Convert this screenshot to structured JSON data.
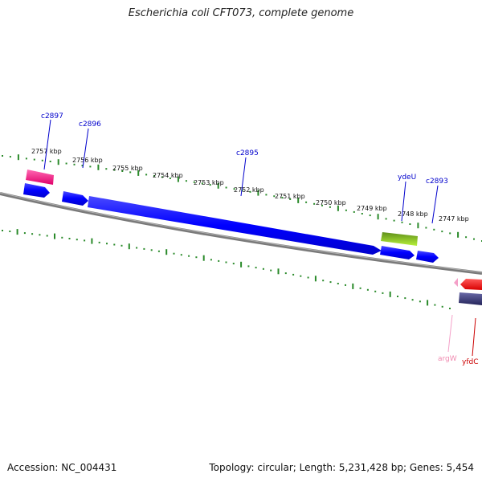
{
  "title": "Escherichia coli CFT073, complete genome",
  "footer": {
    "accession": "Accession: NC_004431",
    "topology": "Topology: circular; Length: 5,231,428 bp; Genes: 5,454"
  },
  "map": {
    "kbp_ticks": [
      "2757 kbp",
      "2756 kbp",
      "2755 kbp",
      "2754 kbp",
      "2753 kbp",
      "2752 kbp",
      "2751 kbp",
      "2750 kbp",
      "2749 kbp",
      "2748 kbp",
      "2747 kbp"
    ],
    "gene_labels": [
      {
        "name": "c2897",
        "color": "#0000cc"
      },
      {
        "name": "c2896",
        "color": "#0000cc"
      },
      {
        "name": "c2895",
        "color": "#0000cc"
      },
      {
        "name": "ydeU",
        "color": "#0000cc"
      },
      {
        "name": "c2893",
        "color": "#0000cc"
      },
      {
        "name": "argW",
        "color": "#f08ab0"
      },
      {
        "name": "yfdC",
        "color": "#cc0000"
      }
    ],
    "colors": {
      "backbone": "#808080",
      "tick_ring": "#2a8a2a",
      "cds_forward": "#0000ff",
      "pink_feature": "#ff2a8a",
      "green_feature": "#8ad81c",
      "red_feature": "#ff1a1a",
      "navy_feature": "#3a3a7a",
      "trna_feature": "#f4a0c8"
    }
  }
}
